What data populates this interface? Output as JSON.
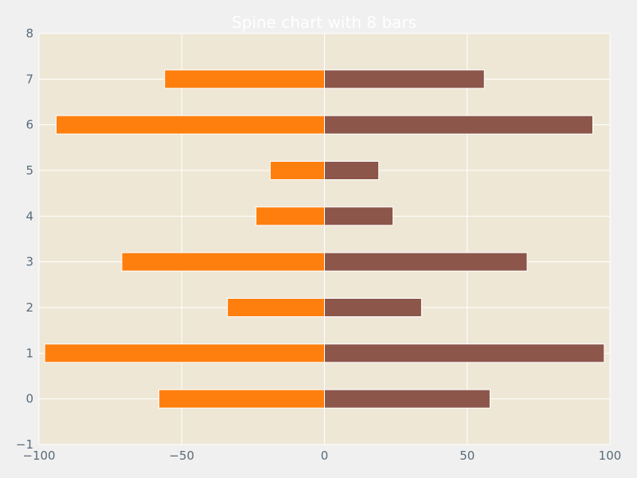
{
  "chart_data": {
    "type": "bar",
    "orientation": "horizontal",
    "title": "Spine chart with 8 bars",
    "categories": [
      0,
      1,
      2,
      3,
      4,
      5,
      6,
      7
    ],
    "series": [
      {
        "values": [
          -58,
          -98,
          -34,
          -71,
          -24,
          -19,
          -94,
          -56
        ],
        "color": "#ff7f0e"
      },
      {
        "values": [
          58,
          98,
          34,
          71,
          24,
          19,
          94,
          56
        ],
        "color": "#8c564b"
      }
    ],
    "xlim": [
      -100,
      100
    ],
    "ylim": [
      -1,
      8
    ],
    "x_ticks": [
      -100,
      -50,
      0,
      50,
      100
    ],
    "x_tick_labels": [
      "−100",
      "−50",
      "0",
      "50",
      "100"
    ],
    "y_ticks": [
      -1,
      0,
      1,
      2,
      3,
      4,
      5,
      6,
      7,
      8
    ],
    "y_tick_labels": [
      "−1",
      "0",
      "1",
      "2",
      "3",
      "4",
      "5",
      "6",
      "7",
      "8"
    ],
    "grid": true,
    "colors": {
      "page_background": "#f0f0f0",
      "plot_background": "#efe7d6",
      "grid": "#ffffff",
      "text": "#5a6b78",
      "title": "#ffffff"
    }
  }
}
